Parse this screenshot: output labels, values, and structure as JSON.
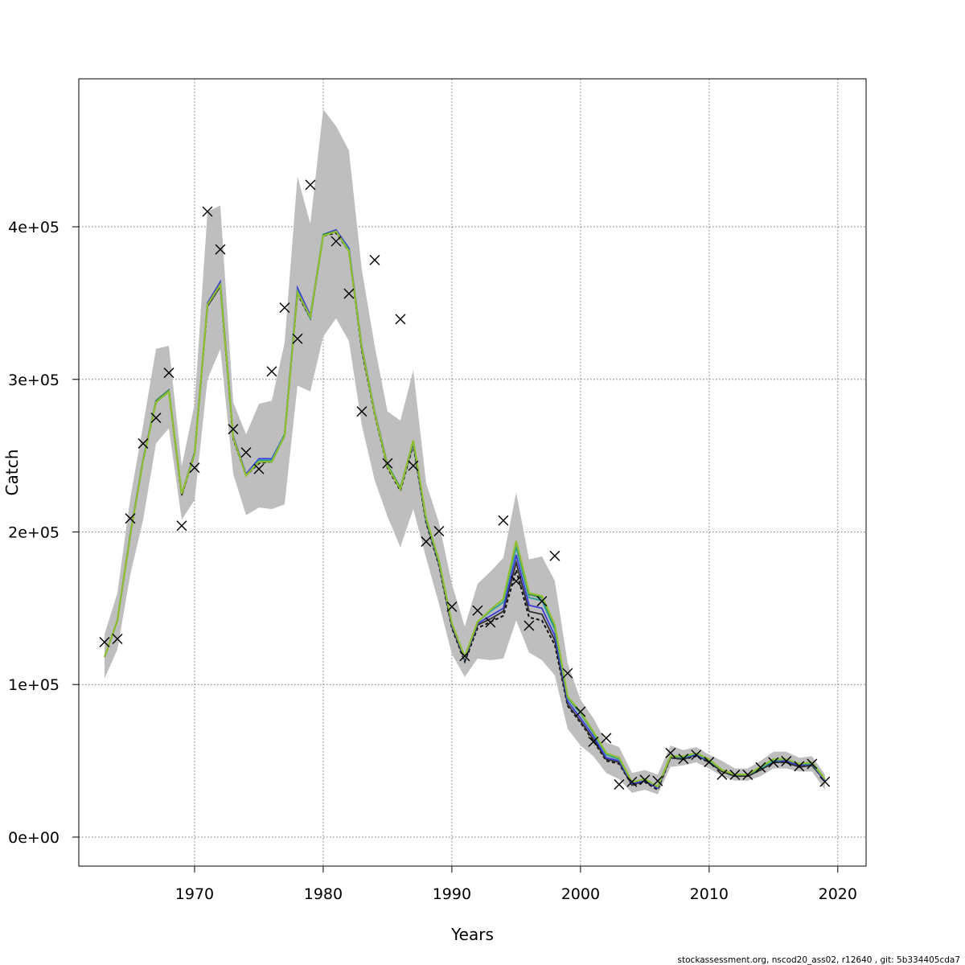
{
  "chart_data": {
    "type": "line",
    "xlabel": "Years",
    "ylabel": "Catch",
    "xlim": [
      1961,
      2022.2
    ],
    "ylim": [
      -19000,
      497000
    ],
    "xticks": [
      1970,
      1980,
      1990,
      2000,
      2010,
      2020
    ],
    "yticks": [
      {
        "value": 0,
        "label": "0e+00"
      },
      {
        "value": 100000,
        "label": "1e+05"
      },
      {
        "value": 200000,
        "label": "2e+05"
      },
      {
        "value": 300000,
        "label": "3e+05"
      },
      {
        "value": 400000,
        "label": "4e+05"
      }
    ],
    "grid": true,
    "legend": "none",
    "footer": "stockassessment.org, nscod20_ass02, r12640 , git: 5b334405cda7",
    "colors": {
      "band": "#bebebe",
      "observed": "#000000",
      "estimate": "#2f2f2f",
      "series": [
        "#3b3bd6",
        "#2aa0a0",
        "#2e8b57",
        "#8fbf2f"
      ]
    },
    "years": [
      1963,
      1964,
      1965,
      1966,
      1967,
      1968,
      1969,
      1970,
      1971,
      1972,
      1973,
      1974,
      1975,
      1976,
      1977,
      1978,
      1979,
      1980,
      1981,
      1982,
      1983,
      1984,
      1985,
      1986,
      1987,
      1988,
      1989,
      1990,
      1991,
      1992,
      1993,
      1994,
      1995,
      1996,
      1997,
      1998,
      1999,
      2000,
      2001,
      2002,
      2003,
      2004,
      2005,
      2006,
      2007,
      2008,
      2009,
      2010,
      2011,
      2012,
      2013,
      2014,
      2015,
      2016,
      2017,
      2018,
      2019
    ],
    "observed": [
      127800,
      129900,
      208800,
      258000,
      274800,
      304300,
      204100,
      242100,
      410000,
      385200,
      267400,
      252100,
      241300,
      305200,
      347000,
      326600,
      427500,
      null,
      390500,
      356200,
      279000,
      378200,
      245000,
      339500,
      243400,
      193700,
      200500,
      151000,
      118700,
      148500,
      140700,
      207500,
      167700,
      138600,
      154600,
      184300,
      107400,
      82200,
      62500,
      64900,
      34500,
      36200,
      37500,
      36800,
      55100,
      51300,
      53900,
      49200,
      40900,
      40800,
      40800,
      45700,
      48900,
      49800,
      46400,
      48000,
      36300
    ],
    "lower": [
      104000,
      123000,
      172000,
      208000,
      258000,
      268000,
      208000,
      221000,
      300000,
      320000,
      238000,
      211000,
      216000,
      215000,
      218000,
      296000,
      292000,
      328000,
      340000,
      325000,
      270000,
      234000,
      210000,
      190000,
      215000,
      183000,
      153000,
      120000,
      105000,
      117000,
      116000,
      117000,
      142000,
      121000,
      116000,
      106000,
      71000,
      60000,
      53000,
      42000,
      38000,
      29000,
      31000,
      28000,
      46000,
      47000,
      49000,
      45000,
      40000,
      37000,
      37000,
      40000,
      45000,
      45000,
      43000,
      43000,
      31000
    ],
    "upper": [
      133000,
      160000,
      222000,
      270000,
      320000,
      322000,
      243000,
      284000,
      410000,
      414000,
      285000,
      264000,
      284000,
      286000,
      324000,
      433000,
      402000,
      477000,
      466000,
      450000,
      372000,
      322000,
      279000,
      273000,
      306000,
      232000,
      206000,
      166000,
      138000,
      166000,
      174000,
      183000,
      226000,
      182000,
      184000,
      168000,
      114000,
      90000,
      78000,
      62000,
      59000,
      42000,
      44000,
      41000,
      60000,
      57000,
      59000,
      54000,
      50000,
      45000,
      45000,
      50000,
      56000,
      56000,
      52000,
      53000,
      41000
    ],
    "estimates": [
      {
        "values": [
          118000,
          142000,
          198000,
          247000,
          285000,
          292000,
          224000,
          252000,
          348000,
          361000,
          262000,
          237000,
          246000,
          247000,
          264000,
          357000,
          340000,
          394000,
          397000,
          385000,
          320000,
          278000,
          243000,
          228000,
          258000,
          207000,
          179000,
          138000,
          116000,
          139000,
          143000,
          148000,
          180000,
          148000,
          146000,
          129000,
          87000,
          76000,
          64000,
          51000,
          49000,
          34000,
          37000,
          32000,
          52000,
          51000,
          54000,
          49000,
          43000,
          40000,
          40000,
          44000,
          49000,
          49000,
          46000,
          47000,
          37000
        ]
      },
      {
        "values": [
          118000,
          142000,
          199000,
          248000,
          286000,
          293000,
          225000,
          252000,
          350000,
          364000,
          263000,
          238000,
          248000,
          248000,
          264000,
          360000,
          342000,
          395000,
          398000,
          386000,
          322000,
          279000,
          244000,
          228000,
          259000,
          208000,
          180000,
          139000,
          117000,
          140000,
          145000,
          150000,
          185000,
          152000,
          150000,
          132000,
          89000,
          78000,
          66000,
          52000,
          50000,
          35000,
          37000,
          32000,
          53000,
          52000,
          54000,
          50000,
          44000,
          41000,
          41000,
          45000,
          50000,
          50000,
          47000,
          48000,
          37000
        ]
      },
      {
        "values": [
          118000,
          142000,
          198000,
          247000,
          285000,
          292000,
          225000,
          251000,
          349000,
          362000,
          262000,
          237000,
          247000,
          247000,
          264000,
          358000,
          340000,
          394000,
          397000,
          385000,
          321000,
          278000,
          243000,
          228000,
          259000,
          208000,
          180000,
          140000,
          118000,
          141000,
          148000,
          154000,
          190000,
          157000,
          155000,
          136000,
          91000,
          81000,
          68000,
          54000,
          51000,
          36000,
          38000,
          33000,
          53000,
          52000,
          55000,
          50000,
          44000,
          41000,
          41000,
          45000,
          50000,
          51000,
          48000,
          48000,
          38000
        ]
      },
      {
        "values": [
          118000,
          142000,
          198000,
          247000,
          286000,
          293000,
          225000,
          251000,
          349000,
          362000,
          262000,
          237000,
          246000,
          246000,
          263000,
          357000,
          341000,
          395000,
          397000,
          384000,
          321000,
          278000,
          244000,
          229000,
          260000,
          209000,
          181000,
          140000,
          118000,
          141000,
          149000,
          156000,
          193000,
          159000,
          157000,
          138000,
          92000,
          82000,
          69000,
          55000,
          52000,
          36000,
          38000,
          33000,
          53000,
          53000,
          55000,
          51000,
          44000,
          41000,
          41000,
          46000,
          51000,
          51000,
          48000,
          49000,
          38000
        ]
      },
      {
        "values": [
          118000,
          142000,
          198000,
          247000,
          285000,
          292000,
          225000,
          251000,
          349000,
          362000,
          262000,
          237000,
          246000,
          246000,
          263000,
          357000,
          341000,
          394000,
          397000,
          384000,
          321000,
          278000,
          243000,
          228000,
          260000,
          209000,
          181000,
          140000,
          118000,
          141000,
          149000,
          156000,
          194000,
          160000,
          158000,
          139000,
          92000,
          82000,
          69000,
          55000,
          52000,
          36000,
          38000,
          33000,
          53000,
          53000,
          55000,
          51000,
          44000,
          41000,
          41000,
          46000,
          51000,
          51000,
          48000,
          49000,
          38000
        ]
      }
    ],
    "estimate_dashed": [
      118000,
      142000,
      198000,
      247000,
      285000,
      292000,
      224000,
      251000,
      348000,
      361000,
      261000,
      237000,
      245000,
      246000,
      263000,
      356000,
      340000,
      394000,
      396000,
      384000,
      319000,
      277000,
      242000,
      227000,
      257000,
      206000,
      178000,
      137000,
      115000,
      137000,
      141000,
      145000,
      175000,
      144000,
      142000,
      126000,
      86000,
      75000,
      63000,
      50000,
      48000,
      34000,
      36000,
      31000,
      52000,
      51000,
      53000,
      49000,
      43000,
      40000,
      40000,
      44000,
      49000,
      49000,
      46000,
      47000,
      37000
    ]
  }
}
